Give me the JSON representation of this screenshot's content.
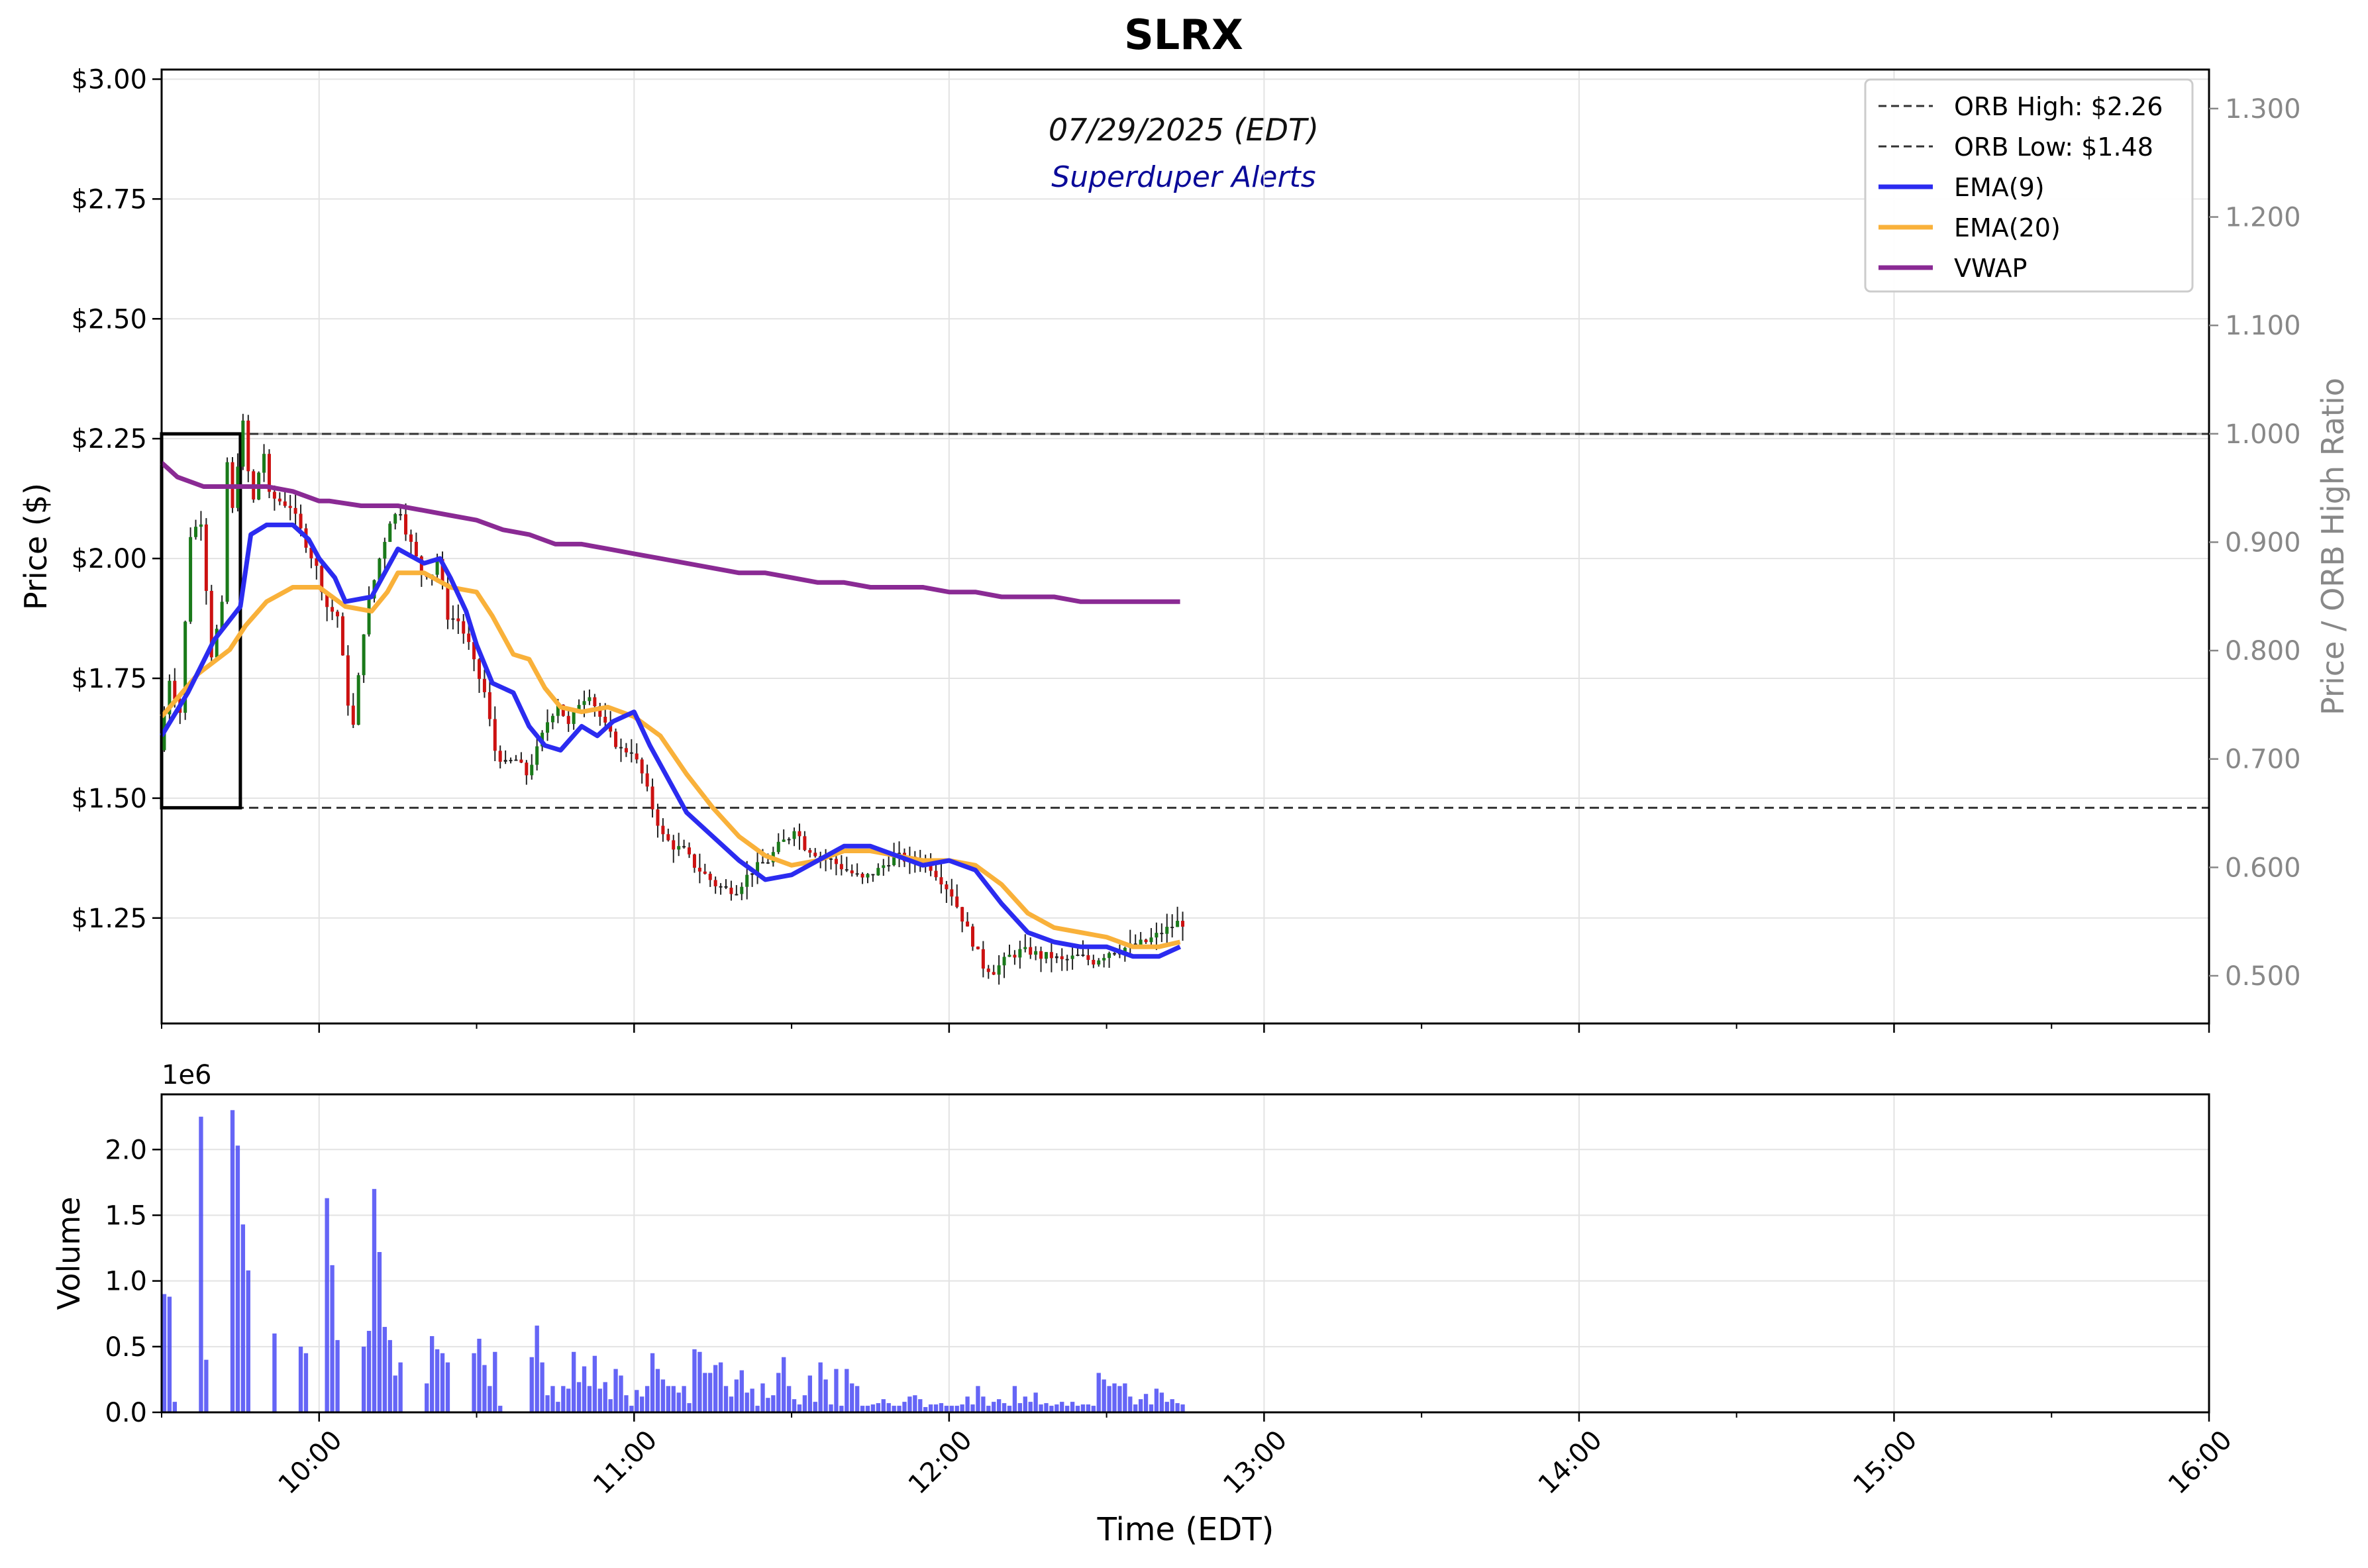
{
  "chart_data": {
    "type": "candlestick",
    "title": "SLRX",
    "date_label": "07/29/2025 (EDT)",
    "watermark": "Superduper Alerts",
    "xlabel": "Time (EDT)",
    "ylabel": "Price ($)",
    "ylabel_right": "Price / ORB High Ratio",
    "volume_ylabel": "Volume",
    "volume_scale_label": "1e6",
    "x_range": [
      "09:30",
      "16:00"
    ],
    "x_ticks": [
      "10:00",
      "11:00",
      "12:00",
      "13:00",
      "14:00",
      "15:00",
      "16:00"
    ],
    "price_ylim": [
      1.03,
      3.02
    ],
    "price_ticks": [
      "$1.25",
      "$1.50",
      "$1.75",
      "$2.00",
      "$2.25",
      "$2.50",
      "$2.75",
      "$3.00"
    ],
    "ratio_ylim": [
      0.456,
      1.336
    ],
    "ratio_ticks": [
      "0.500",
      "0.600",
      "0.700",
      "0.800",
      "0.900",
      "1.000",
      "1.100",
      "1.200",
      "1.300"
    ],
    "volume_ylim": [
      0,
      2.42
    ],
    "volume_ticks": [
      "0.0",
      "0.5",
      "1.0",
      "1.5",
      "2.0"
    ],
    "grid": true,
    "legend_position": "top-right",
    "orb": {
      "high": 2.26,
      "low": 1.48,
      "start": "09:30",
      "end": "09:45"
    },
    "legend": [
      {
        "label": "ORB High: $2.26",
        "style": "dashed",
        "color": "#333333"
      },
      {
        "label": "ORB Low: $1.48",
        "style": "dashed",
        "color": "#333333"
      },
      {
        "label": "EMA(9)",
        "style": "solid",
        "color": "#2b2bf0"
      },
      {
        "label": "EMA(20)",
        "style": "solid",
        "color": "#f9b13a"
      },
      {
        "label": "VWAP",
        "style": "solid",
        "color": "#8a2a94"
      }
    ],
    "colors": {
      "up": "#1a7a1a",
      "down": "#cc1111",
      "neutral": "#222222",
      "volume": "#4a4af5"
    },
    "ema9": [
      [
        0,
        1.63
      ],
      [
        5,
        1.72
      ],
      [
        10,
        1.83
      ],
      [
        15,
        1.9
      ],
      [
        17,
        2.05
      ],
      [
        20,
        2.07
      ],
      [
        25,
        2.07
      ],
      [
        28,
        2.04
      ],
      [
        30,
        2.0
      ],
      [
        33,
        1.96
      ],
      [
        35,
        1.91
      ],
      [
        40,
        1.92
      ],
      [
        43,
        1.98
      ],
      [
        45,
        2.02
      ],
      [
        50,
        1.99
      ],
      [
        53,
        2.0
      ],
      [
        55,
        1.96
      ],
      [
        58,
        1.89
      ],
      [
        60,
        1.82
      ],
      [
        63,
        1.74
      ],
      [
        67,
        1.72
      ],
      [
        70,
        1.65
      ],
      [
        73,
        1.61
      ],
      [
        76,
        1.6
      ],
      [
        80,
        1.65
      ],
      [
        83,
        1.63
      ],
      [
        86,
        1.66
      ],
      [
        90,
        1.68
      ],
      [
        93,
        1.61
      ],
      [
        96,
        1.55
      ],
      [
        100,
        1.47
      ],
      [
        105,
        1.42
      ],
      [
        110,
        1.37
      ],
      [
        115,
        1.33
      ],
      [
        120,
        1.34
      ],
      [
        125,
        1.37
      ],
      [
        130,
        1.4
      ],
      [
        135,
        1.4
      ],
      [
        140,
        1.38
      ],
      [
        145,
        1.36
      ],
      [
        150,
        1.37
      ],
      [
        155,
        1.35
      ],
      [
        160,
        1.28
      ],
      [
        165,
        1.22
      ],
      [
        170,
        1.2
      ],
      [
        175,
        1.19
      ],
      [
        180,
        1.19
      ],
      [
        185,
        1.17
      ],
      [
        190,
        1.17
      ],
      [
        194,
        1.19
      ]
    ],
    "ema20": [
      [
        0,
        1.67
      ],
      [
        7,
        1.76
      ],
      [
        13,
        1.81
      ],
      [
        16,
        1.86
      ],
      [
        20,
        1.91
      ],
      [
        25,
        1.94
      ],
      [
        30,
        1.94
      ],
      [
        35,
        1.9
      ],
      [
        40,
        1.89
      ],
      [
        43,
        1.93
      ],
      [
        45,
        1.97
      ],
      [
        50,
        1.97
      ],
      [
        55,
        1.94
      ],
      [
        60,
        1.93
      ],
      [
        63,
        1.88
      ],
      [
        67,
        1.8
      ],
      [
        70,
        1.79
      ],
      [
        73,
        1.73
      ],
      [
        76,
        1.69
      ],
      [
        80,
        1.68
      ],
      [
        85,
        1.69
      ],
      [
        90,
        1.67
      ],
      [
        95,
        1.63
      ],
      [
        100,
        1.55
      ],
      [
        105,
        1.48
      ],
      [
        110,
        1.42
      ],
      [
        115,
        1.38
      ],
      [
        120,
        1.36
      ],
      [
        125,
        1.37
      ],
      [
        130,
        1.39
      ],
      [
        135,
        1.39
      ],
      [
        140,
        1.38
      ],
      [
        145,
        1.37
      ],
      [
        150,
        1.37
      ],
      [
        155,
        1.36
      ],
      [
        160,
        1.32
      ],
      [
        165,
        1.26
      ],
      [
        170,
        1.23
      ],
      [
        175,
        1.22
      ],
      [
        180,
        1.21
      ],
      [
        185,
        1.19
      ],
      [
        190,
        1.19
      ],
      [
        194,
        1.2
      ]
    ],
    "vwap": [
      [
        0,
        2.2
      ],
      [
        3,
        2.17
      ],
      [
        8,
        2.15
      ],
      [
        15,
        2.15
      ],
      [
        20,
        2.15
      ],
      [
        25,
        2.14
      ],
      [
        30,
        2.12
      ],
      [
        32,
        2.12
      ],
      [
        38,
        2.11
      ],
      [
        45,
        2.11
      ],
      [
        50,
        2.1
      ],
      [
        55,
        2.09
      ],
      [
        60,
        2.08
      ],
      [
        65,
        2.06
      ],
      [
        70,
        2.05
      ],
      [
        75,
        2.03
      ],
      [
        80,
        2.03
      ],
      [
        85,
        2.02
      ],
      [
        90,
        2.01
      ],
      [
        95,
        2.0
      ],
      [
        100,
        1.99
      ],
      [
        105,
        1.98
      ],
      [
        110,
        1.97
      ],
      [
        115,
        1.97
      ],
      [
        120,
        1.96
      ],
      [
        125,
        1.95
      ],
      [
        130,
        1.95
      ],
      [
        135,
        1.94
      ],
      [
        140,
        1.94
      ],
      [
        145,
        1.94
      ],
      [
        150,
        1.93
      ],
      [
        155,
        1.93
      ],
      [
        160,
        1.92
      ],
      [
        165,
        1.92
      ],
      [
        170,
        1.92
      ],
      [
        175,
        1.91
      ],
      [
        180,
        1.91
      ],
      [
        185,
        1.91
      ],
      [
        194,
        1.91
      ]
    ],
    "candle_anchors": [
      [
        0,
        1.6
      ],
      [
        2,
        1.75
      ],
      [
        4,
        1.68
      ],
      [
        6,
        2.05
      ],
      [
        8,
        2.08
      ],
      [
        10,
        1.8
      ],
      [
        12,
        1.9
      ],
      [
        13,
        2.2
      ],
      [
        14,
        2.1
      ],
      [
        15,
        2.2
      ],
      [
        16,
        2.28
      ],
      [
        17,
        2.18
      ],
      [
        18,
        2.12
      ],
      [
        19,
        2.18
      ],
      [
        20,
        2.22
      ],
      [
        21,
        2.13
      ],
      [
        25,
        2.11
      ],
      [
        30,
        1.98
      ],
      [
        32,
        1.9
      ],
      [
        34,
        1.88
      ],
      [
        36,
        1.7
      ],
      [
        37,
        1.65
      ],
      [
        38,
        1.75
      ],
      [
        39,
        1.85
      ],
      [
        40,
        1.91
      ],
      [
        42,
        2.0
      ],
      [
        44,
        2.08
      ],
      [
        46,
        2.1
      ],
      [
        47,
        2.06
      ],
      [
        48,
        2.03
      ],
      [
        50,
        1.97
      ],
      [
        52,
        1.97
      ],
      [
        53,
        2.0
      ],
      [
        55,
        1.88
      ],
      [
        57,
        1.87
      ],
      [
        59,
        1.82
      ],
      [
        60,
        1.78
      ],
      [
        62,
        1.72
      ],
      [
        64,
        1.6
      ],
      [
        66,
        1.57
      ],
      [
        68,
        1.58
      ],
      [
        70,
        1.55
      ],
      [
        72,
        1.6
      ],
      [
        74,
        1.66
      ],
      [
        76,
        1.7
      ],
      [
        78,
        1.65
      ],
      [
        80,
        1.7
      ],
      [
        82,
        1.72
      ],
      [
        84,
        1.67
      ],
      [
        86,
        1.63
      ],
      [
        88,
        1.6
      ],
      [
        90,
        1.6
      ],
      [
        92,
        1.55
      ],
      [
        94,
        1.48
      ],
      [
        96,
        1.42
      ],
      [
        98,
        1.4
      ],
      [
        100,
        1.39
      ],
      [
        102,
        1.36
      ],
      [
        104,
        1.34
      ],
      [
        106,
        1.32
      ],
      [
        108,
        1.31
      ],
      [
        110,
        1.31
      ],
      [
        113,
        1.35
      ],
      [
        116,
        1.37
      ],
      [
        118,
        1.4
      ],
      [
        120,
        1.42
      ],
      [
        121,
        1.44
      ],
      [
        123,
        1.4
      ],
      [
        126,
        1.38
      ],
      [
        128,
        1.37
      ],
      [
        131,
        1.35
      ],
      [
        134,
        1.33
      ],
      [
        137,
        1.35
      ],
      [
        140,
        1.38
      ],
      [
        143,
        1.37
      ],
      [
        146,
        1.37
      ],
      [
        149,
        1.33
      ],
      [
        151,
        1.3
      ],
      [
        153,
        1.25
      ],
      [
        155,
        1.2
      ],
      [
        157,
        1.15
      ],
      [
        159,
        1.14
      ],
      [
        162,
        1.17
      ],
      [
        164,
        1.18
      ],
      [
        166,
        1.18
      ],
      [
        168,
        1.17
      ],
      [
        170,
        1.17
      ],
      [
        172,
        1.16
      ],
      [
        175,
        1.17
      ],
      [
        178,
        1.16
      ],
      [
        181,
        1.18
      ],
      [
        185,
        1.19
      ],
      [
        188,
        1.2
      ],
      [
        191,
        1.22
      ],
      [
        194,
        1.24
      ]
    ],
    "volume_bars_millions": [
      [
        0,
        0.9
      ],
      [
        1,
        0.88
      ],
      [
        2,
        0.08
      ],
      [
        7,
        2.25
      ],
      [
        8,
        0.4
      ],
      [
        13,
        2.3
      ],
      [
        14,
        2.03
      ],
      [
        15,
        1.43
      ],
      [
        16,
        1.08
      ],
      [
        21,
        0.6
      ],
      [
        26,
        0.5
      ],
      [
        27,
        0.45
      ],
      [
        31,
        1.63
      ],
      [
        32,
        1.12
      ],
      [
        33,
        0.55
      ],
      [
        38,
        0.5
      ],
      [
        39,
        0.62
      ],
      [
        40,
        1.7
      ],
      [
        41,
        1.22
      ],
      [
        42,
        0.65
      ],
      [
        43,
        0.55
      ],
      [
        44,
        0.28
      ],
      [
        45,
        0.38
      ],
      [
        50,
        0.22
      ],
      [
        51,
        0.58
      ],
      [
        52,
        0.48
      ],
      [
        53,
        0.45
      ],
      [
        54,
        0.38
      ],
      [
        59,
        0.45
      ],
      [
        60,
        0.56
      ],
      [
        61,
        0.36
      ],
      [
        62,
        0.2
      ],
      [
        63,
        0.46
      ],
      [
        64,
        0.05
      ],
      [
        70,
        0.42
      ],
      [
        71,
        0.66
      ],
      [
        72,
        0.38
      ],
      [
        73,
        0.13
      ],
      [
        74,
        0.2
      ],
      [
        75,
        0.08
      ],
      [
        76,
        0.2
      ],
      [
        77,
        0.18
      ],
      [
        78,
        0.46
      ],
      [
        79,
        0.23
      ],
      [
        80,
        0.35
      ],
      [
        81,
        0.2
      ],
      [
        82,
        0.43
      ],
      [
        83,
        0.18
      ],
      [
        84,
        0.23
      ],
      [
        85,
        0.1
      ],
      [
        86,
        0.33
      ],
      [
        87,
        0.28
      ],
      [
        88,
        0.13
      ],
      [
        89,
        0.05
      ],
      [
        90,
        0.17
      ],
      [
        91,
        0.12
      ],
      [
        92,
        0.2
      ],
      [
        93,
        0.45
      ],
      [
        94,
        0.33
      ],
      [
        95,
        0.25
      ],
      [
        96,
        0.2
      ],
      [
        97,
        0.2
      ],
      [
        98,
        0.15
      ],
      [
        99,
        0.2
      ],
      [
        100,
        0.07
      ],
      [
        101,
        0.48
      ],
      [
        102,
        0.46
      ],
      [
        103,
        0.3
      ],
      [
        104,
        0.3
      ],
      [
        105,
        0.36
      ],
      [
        106,
        0.38
      ],
      [
        107,
        0.2
      ],
      [
        108,
        0.12
      ],
      [
        109,
        0.25
      ],
      [
        110,
        0.32
      ],
      [
        111,
        0.15
      ],
      [
        112,
        0.18
      ],
      [
        113,
        0.05
      ],
      [
        114,
        0.22
      ],
      [
        115,
        0.11
      ],
      [
        116,
        0.13
      ],
      [
        117,
        0.3
      ],
      [
        118,
        0.42
      ],
      [
        119,
        0.2
      ],
      [
        120,
        0.1
      ],
      [
        121,
        0.06
      ],
      [
        122,
        0.13
      ],
      [
        123,
        0.28
      ],
      [
        124,
        0.08
      ],
      [
        125,
        0.38
      ],
      [
        126,
        0.25
      ],
      [
        127,
        0.06
      ],
      [
        128,
        0.33
      ],
      [
        129,
        0.05
      ],
      [
        130,
        0.33
      ],
      [
        131,
        0.22
      ],
      [
        132,
        0.2
      ],
      [
        133,
        0.05
      ],
      [
        134,
        0.05
      ],
      [
        135,
        0.06
      ],
      [
        136,
        0.07
      ],
      [
        137,
        0.1
      ],
      [
        138,
        0.07
      ],
      [
        139,
        0.05
      ],
      [
        140,
        0.05
      ],
      [
        141,
        0.08
      ],
      [
        142,
        0.12
      ],
      [
        143,
        0.13
      ],
      [
        144,
        0.1
      ],
      [
        145,
        0.04
      ],
      [
        146,
        0.06
      ],
      [
        147,
        0.06
      ],
      [
        148,
        0.07
      ],
      [
        149,
        0.05
      ],
      [
        150,
        0.05
      ],
      [
        151,
        0.05
      ],
      [
        152,
        0.06
      ],
      [
        153,
        0.12
      ],
      [
        154,
        0.06
      ],
      [
        155,
        0.2
      ],
      [
        156,
        0.12
      ],
      [
        157,
        0.05
      ],
      [
        158,
        0.08
      ],
      [
        159,
        0.1
      ],
      [
        160,
        0.07
      ],
      [
        161,
        0.05
      ],
      [
        162,
        0.2
      ],
      [
        163,
        0.07
      ],
      [
        164,
        0.12
      ],
      [
        165,
        0.08
      ],
      [
        166,
        0.15
      ],
      [
        167,
        0.06
      ],
      [
        168,
        0.07
      ],
      [
        169,
        0.05
      ],
      [
        170,
        0.06
      ],
      [
        171,
        0.08
      ],
      [
        172,
        0.05
      ],
      [
        173,
        0.08
      ],
      [
        174,
        0.05
      ],
      [
        175,
        0.06
      ],
      [
        176,
        0.06
      ],
      [
        177,
        0.05
      ],
      [
        178,
        0.3
      ],
      [
        179,
        0.25
      ],
      [
        180,
        0.2
      ],
      [
        181,
        0.22
      ],
      [
        182,
        0.2
      ],
      [
        183,
        0.22
      ],
      [
        184,
        0.12
      ],
      [
        185,
        0.06
      ],
      [
        186,
        0.1
      ],
      [
        187,
        0.14
      ],
      [
        188,
        0.06
      ],
      [
        189,
        0.18
      ],
      [
        190,
        0.15
      ],
      [
        191,
        0.08
      ],
      [
        192,
        0.1
      ],
      [
        193,
        0.07
      ],
      [
        194,
        0.06
      ]
    ]
  }
}
